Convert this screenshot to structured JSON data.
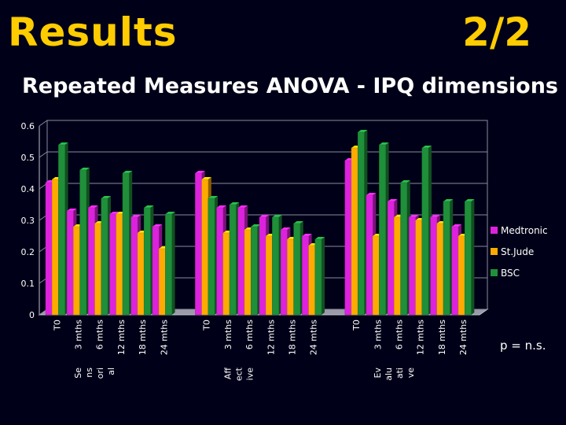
{
  "header": {
    "title": "Results",
    "page": "2/2"
  },
  "chart_data": {
    "type": "bar",
    "title": "Repeated Measures ANOVA - IPQ dimensions",
    "ylim": [
      0,
      0.6
    ],
    "yticks": [
      "0",
      "0.1",
      "0.2",
      "0.3",
      "0.4",
      "0.5",
      "0.6"
    ],
    "groups": [
      {
        "name": "Sensorial",
        "label_lines": [
          "Se",
          "ns",
          "ori",
          "al"
        ],
        "categories": [
          "T0",
          "3 mths",
          "6 mths",
          "12 mths",
          "18 mths",
          "24 mths"
        ]
      },
      {
        "name": "Affective",
        "label_lines": [
          "Aff",
          "ect",
          "ive"
        ],
        "categories": [
          "T0",
          "3 mths",
          "6 mths",
          "12 mths",
          "18 mths",
          "24 mths"
        ]
      },
      {
        "name": "Evaluative",
        "label_lines": [
          "Ev",
          "alu",
          "ati",
          "ve"
        ],
        "categories": [
          "T0",
          "3 mths",
          "6 mths",
          "12 mths",
          "18 mths",
          "24 mths"
        ]
      }
    ],
    "series": [
      {
        "name": "Medtronic",
        "color": "#dd22dd",
        "values": [
          0.42,
          0.33,
          0.34,
          0.32,
          0.31,
          0.28,
          0.45,
          0.34,
          0.34,
          0.31,
          0.27,
          0.25,
          0.49,
          0.38,
          0.36,
          0.31,
          0.31,
          0.28
        ]
      },
      {
        "name": "St.Jude",
        "color": "#ffaa00",
        "values": [
          0.43,
          0.28,
          0.29,
          0.32,
          0.26,
          0.21,
          0.43,
          0.26,
          0.27,
          0.25,
          0.24,
          0.22,
          0.53,
          0.25,
          0.31,
          0.3,
          0.29,
          0.25
        ]
      },
      {
        "name": "BSC",
        "color": "#1f8f3a",
        "values": [
          0.54,
          0.46,
          0.37,
          0.45,
          0.34,
          0.32,
          0.37,
          0.35,
          0.28,
          0.31,
          0.29,
          0.24,
          0.58,
          0.54,
          0.42,
          0.53,
          0.36,
          0.36
        ]
      }
    ]
  },
  "footnote": "p = n.s."
}
